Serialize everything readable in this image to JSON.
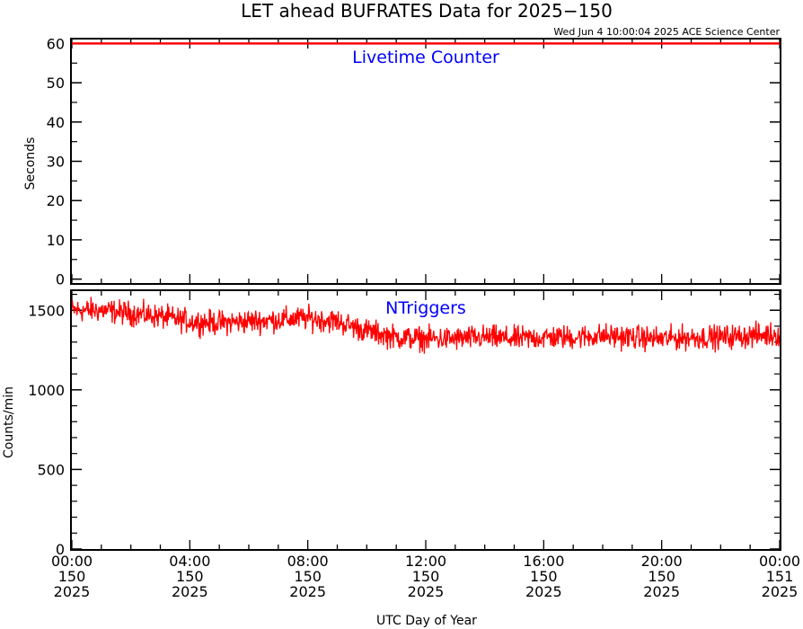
{
  "title": "LET ahead BUFRATES Data for 2025−150",
  "timestamp": "Wed Jun  4 10:00:04 2025 ACE Science Center",
  "xlabel": "UTC Day of Year",
  "colors": {
    "data": "#ff0000",
    "panel_label": "#0000ff",
    "axes": "#000000",
    "background": "#ffffff"
  },
  "x_ticks": [
    {
      "time": "00:00",
      "day": "150",
      "year": "2025"
    },
    {
      "time": "04:00",
      "day": "150",
      "year": "2025"
    },
    {
      "time": "08:00",
      "day": "150",
      "year": "2025"
    },
    {
      "time": "12:00",
      "day": "150",
      "year": "2025"
    },
    {
      "time": "16:00",
      "day": "150",
      "year": "2025"
    },
    {
      "time": "20:00",
      "day": "150",
      "year": "2025"
    },
    {
      "time": "00:00",
      "day": "151",
      "year": "2025"
    }
  ],
  "chart_data": [
    {
      "type": "line",
      "panel": "top",
      "label": "Livetime Counter",
      "ylabel": "Seconds",
      "x_unit": "hours UTC on day 150",
      "xlim": [
        0,
        24
      ],
      "ylim": [
        -1,
        61
      ],
      "yticks": [
        0,
        10,
        20,
        30,
        40,
        50,
        60
      ],
      "series": [
        {
          "x": [
            0,
            24
          ],
          "values": [
            60,
            60
          ]
        }
      ]
    },
    {
      "type": "line",
      "panel": "bottom",
      "label": "NTriggers",
      "ylabel": "Counts/min",
      "x_unit": "hours UTC on day 150",
      "xlim": [
        0,
        24
      ],
      "ylim": [
        0,
        1620
      ],
      "yticks": [
        0,
        500,
        1000,
        1500
      ],
      "series": [
        {
          "x": [
            0,
            1,
            2,
            3,
            4,
            5,
            6,
            7,
            8,
            9,
            10,
            11,
            12,
            13,
            14,
            15,
            16,
            17,
            18,
            19,
            20,
            21,
            22,
            23,
            24
          ],
          "values": [
            1500,
            1500,
            1480,
            1460,
            1430,
            1420,
            1430,
            1440,
            1450,
            1430,
            1370,
            1330,
            1320,
            1320,
            1330,
            1320,
            1330,
            1330,
            1340,
            1330,
            1320,
            1330,
            1330,
            1340,
            1350
          ]
        }
      ]
    }
  ]
}
